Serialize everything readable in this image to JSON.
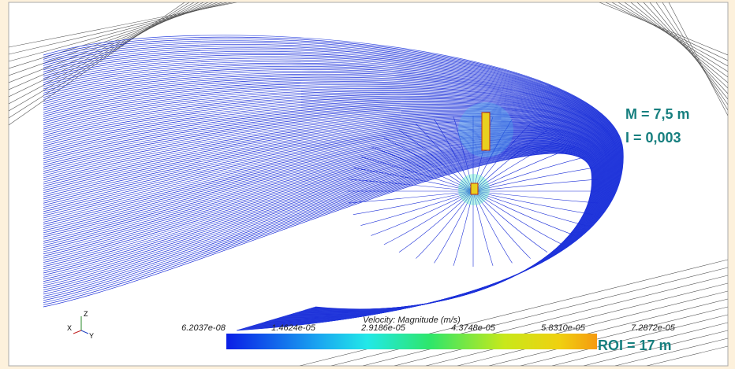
{
  "annotations": {
    "mesh": "M = 7,5 m",
    "intensity": "I = 0,003",
    "roi": "ROI = 17 m"
  },
  "colorbar": {
    "title": "Velocity: Magnitude (m/s)",
    "labels": [
      "6.2037e-08",
      "1.4624e-05",
      "2.9186e-05",
      "4.3748e-05",
      "5.8310e-05",
      "7.2872e-05"
    ]
  },
  "axes_triad": {
    "x": "X",
    "y": "Y",
    "z": "Z"
  }
}
